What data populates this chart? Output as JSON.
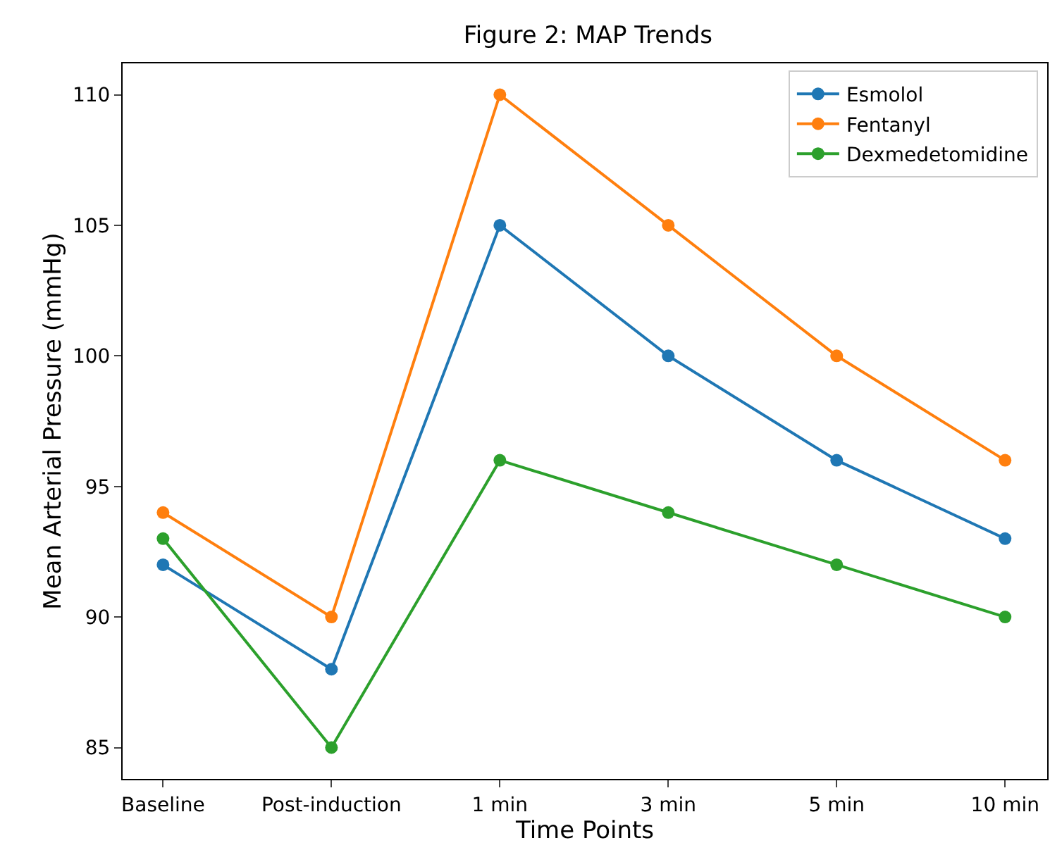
{
  "chart_data": {
    "type": "line",
    "title": "Figure 2: MAP Trends",
    "xlabel": "Time Points",
    "ylabel": "Mean Arterial Pressure (mmHg)",
    "categories": [
      "Baseline",
      "Post-induction",
      "1 min",
      "3 min",
      "5 min",
      "10 min"
    ],
    "series": [
      {
        "name": "Esmolol",
        "color": "#1f77b4",
        "values": [
          92,
          88,
          105,
          100,
          96,
          93
        ]
      },
      {
        "name": "Fentanyl",
        "color": "#ff7f0e",
        "values": [
          94,
          90,
          110,
          105,
          100,
          96
        ]
      },
      {
        "name": "Dexmedetomidine",
        "color": "#2ca02c",
        "values": [
          93,
          85,
          96,
          94,
          92,
          90
        ]
      }
    ],
    "ylim": [
      83.8,
      111.2
    ],
    "yticks": [
      85,
      90,
      95,
      100,
      105,
      110
    ],
    "grid": false,
    "legend": "top right",
    "marker": "circle",
    "line_style": "solid"
  }
}
